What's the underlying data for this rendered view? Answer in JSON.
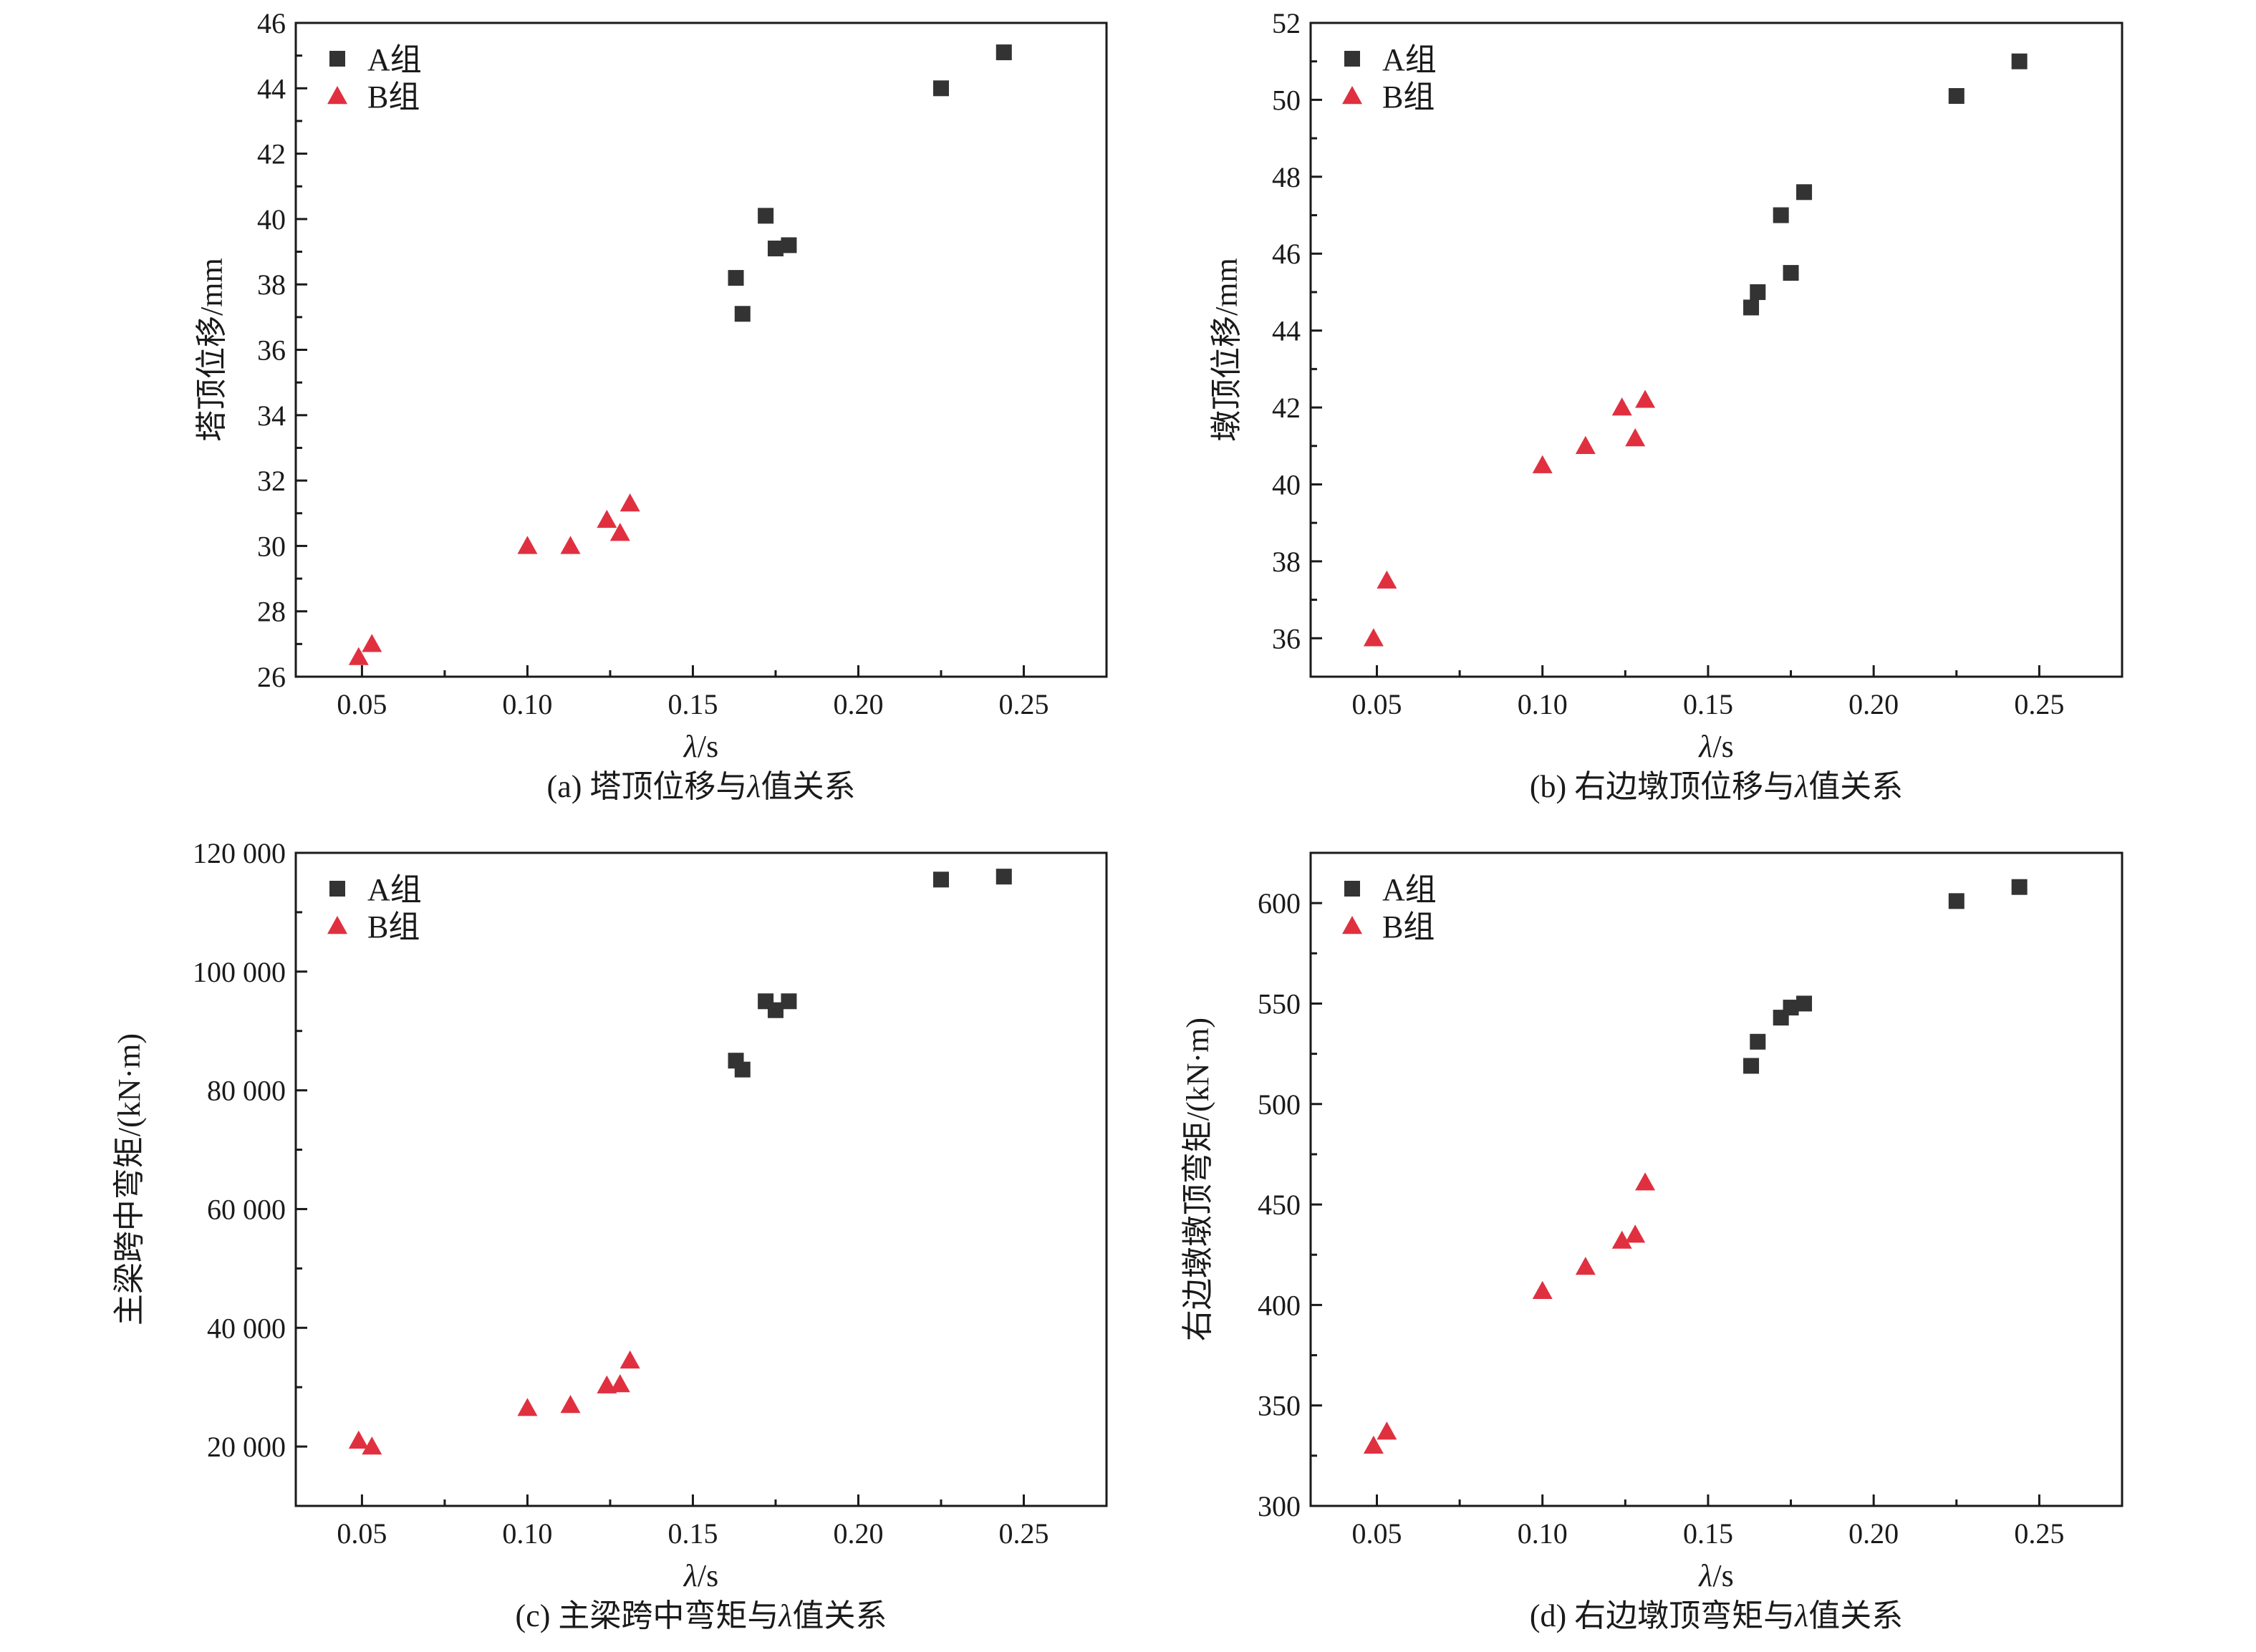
{
  "colors": {
    "series_a": "#333333",
    "series_b": "#e03040",
    "axis": "#1a1a1a"
  },
  "chart_data": [
    {
      "type": "scatter",
      "caption_prefix": "(a) 塔顶位移与",
      "caption_lambda": "λ",
      "caption_suffix": "值关系",
      "xlabel_var": "λ",
      "xlabel_unit": "/s",
      "ylabel": "塔顶位移/mm",
      "xlim": [
        0.03,
        0.275
      ],
      "ylim": [
        26,
        46
      ],
      "xticks": [
        0.05,
        0.1,
        0.15,
        0.2,
        0.25
      ],
      "xtick_labels": [
        "0.05",
        "0.10",
        "0.15",
        "0.20",
        "0.25"
      ],
      "yticks": [
        26,
        28,
        30,
        32,
        34,
        36,
        38,
        40,
        42,
        44,
        46
      ],
      "ytick_labels": [
        "26",
        "28",
        "30",
        "32",
        "34",
        "36",
        "38",
        "40",
        "42",
        "44",
        "46"
      ],
      "legend_position": "top-left",
      "series": [
        {
          "name": "A组",
          "marker": "square",
          "points": [
            [
              0.163,
              38.2
            ],
            [
              0.165,
              37.1
            ],
            [
              0.172,
              40.1
            ],
            [
              0.175,
              39.1
            ],
            [
              0.179,
              39.2
            ],
            [
              0.225,
              44.0
            ],
            [
              0.244,
              45.1
            ]
          ]
        },
        {
          "name": "B组",
          "marker": "triangle",
          "points": [
            [
              0.049,
              26.6
            ],
            [
              0.053,
              27.0
            ],
            [
              0.1,
              30.0
            ],
            [
              0.113,
              30.0
            ],
            [
              0.124,
              30.8
            ],
            [
              0.128,
              30.4
            ],
            [
              0.131,
              31.3
            ]
          ]
        }
      ]
    },
    {
      "type": "scatter",
      "caption_prefix": "(b) 右边墩顶位移与",
      "caption_lambda": "λ",
      "caption_suffix": "值关系",
      "xlabel_var": "λ",
      "xlabel_unit": "/s",
      "ylabel": "墩顶位移/mm",
      "xlim": [
        0.03,
        0.275
      ],
      "ylim": [
        35,
        52
      ],
      "xticks": [
        0.05,
        0.1,
        0.15,
        0.2,
        0.25
      ],
      "xtick_labels": [
        "0.05",
        "0.10",
        "0.15",
        "0.20",
        "0.25"
      ],
      "yticks": [
        36,
        38,
        40,
        42,
        44,
        46,
        48,
        50,
        52
      ],
      "ytick_labels": [
        "36",
        "38",
        "40",
        "42",
        "44",
        "46",
        "48",
        "50",
        "52"
      ],
      "legend_position": "top-left",
      "series": [
        {
          "name": "A组",
          "marker": "square",
          "points": [
            [
              0.163,
              44.6
            ],
            [
              0.165,
              45.0
            ],
            [
              0.172,
              47.0
            ],
            [
              0.175,
              45.5
            ],
            [
              0.179,
              47.6
            ],
            [
              0.225,
              50.1
            ],
            [
              0.244,
              51.0
            ]
          ]
        },
        {
          "name": "B组",
          "marker": "triangle",
          "points": [
            [
              0.049,
              36.0
            ],
            [
              0.053,
              37.5
            ],
            [
              0.1,
              40.5
            ],
            [
              0.113,
              41.0
            ],
            [
              0.124,
              42.0
            ],
            [
              0.128,
              41.2
            ],
            [
              0.131,
              42.2
            ]
          ]
        }
      ]
    },
    {
      "type": "scatter",
      "caption_prefix": "(c) 主梁跨中弯矩与",
      "caption_lambda": "λ",
      "caption_suffix": "值关系",
      "xlabel_var": "λ",
      "xlabel_unit": "/s",
      "ylabel": "主梁跨中弯矩/(kN·m)",
      "xlim": [
        0.03,
        0.275
      ],
      "ylim": [
        10000,
        120000
      ],
      "xticks": [
        0.05,
        0.1,
        0.15,
        0.2,
        0.25
      ],
      "xtick_labels": [
        "0.05",
        "0.10",
        "0.15",
        "0.20",
        "0.25"
      ],
      "yticks": [
        20000,
        40000,
        60000,
        80000,
        100000,
        120000
      ],
      "ytick_labels": [
        "20 000",
        "40 000",
        "60 000",
        "80 000",
        "100 000",
        "120 000"
      ],
      "legend_position": "top-left",
      "series": [
        {
          "name": "A组",
          "marker": "square",
          "points": [
            [
              0.163,
              85000
            ],
            [
              0.165,
              83500
            ],
            [
              0.172,
              95000
            ],
            [
              0.175,
              93500
            ],
            [
              0.179,
              95000
            ],
            [
              0.225,
              115500
            ],
            [
              0.244,
              116000
            ]
          ]
        },
        {
          "name": "B组",
          "marker": "triangle",
          "points": [
            [
              0.049,
              21000
            ],
            [
              0.053,
              20000
            ],
            [
              0.1,
              26500
            ],
            [
              0.113,
              27000
            ],
            [
              0.124,
              30300
            ],
            [
              0.128,
              30500
            ],
            [
              0.131,
              34500
            ]
          ]
        }
      ]
    },
    {
      "type": "scatter",
      "caption_prefix": "(d) 右边墩顶弯矩与",
      "caption_lambda": "λ",
      "caption_suffix": "值关系",
      "xlabel_var": "λ",
      "xlabel_unit": "/s",
      "ylabel": "右边墩墩顶弯矩/(kN·m)",
      "xlim": [
        0.03,
        0.275
      ],
      "ylim": [
        300,
        625
      ],
      "xticks": [
        0.05,
        0.1,
        0.15,
        0.2,
        0.25
      ],
      "xtick_labels": [
        "0.05",
        "0.10",
        "0.15",
        "0.20",
        "0.25"
      ],
      "yticks": [
        300,
        350,
        400,
        450,
        500,
        550,
        600
      ],
      "ytick_labels": [
        "300",
        "350",
        "400",
        "450",
        "500",
        "550",
        "600"
      ],
      "legend_position": "top-left",
      "series": [
        {
          "name": "A组",
          "marker": "square",
          "points": [
            [
              0.163,
              519
            ],
            [
              0.165,
              531
            ],
            [
              0.172,
              543
            ],
            [
              0.175,
              548
            ],
            [
              0.179,
              550
            ],
            [
              0.225,
              601
            ],
            [
              0.244,
              608
            ]
          ]
        },
        {
          "name": "B组",
          "marker": "triangle",
          "points": [
            [
              0.049,
              330
            ],
            [
              0.053,
              337
            ],
            [
              0.1,
              407
            ],
            [
              0.113,
              419
            ],
            [
              0.124,
              432
            ],
            [
              0.128,
              435
            ],
            [
              0.131,
              461
            ]
          ]
        }
      ]
    }
  ]
}
